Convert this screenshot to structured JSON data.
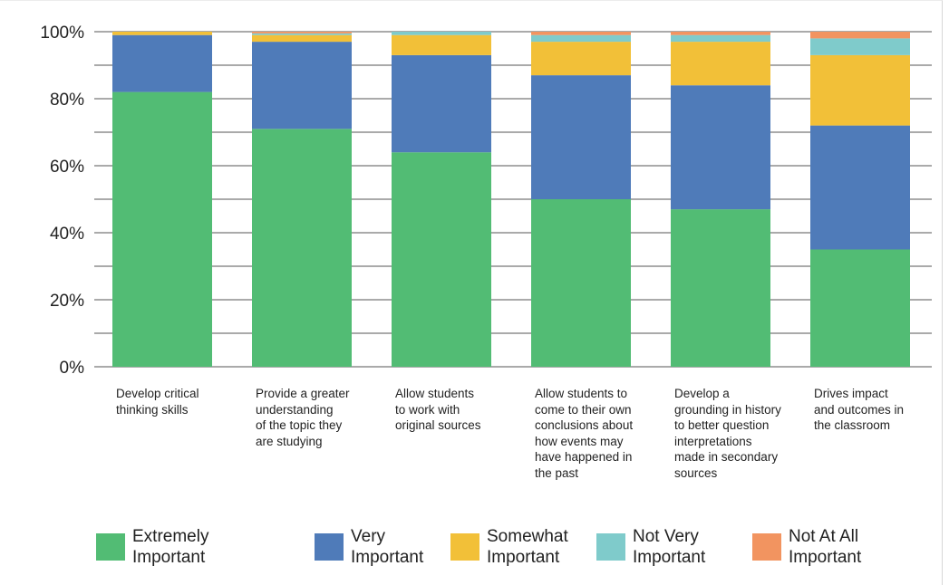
{
  "chart_data": {
    "type": "bar",
    "stacked": true,
    "categories": [
      "Develop critical thinking skills",
      "Provide a greater understanding of the topic they are studying",
      "Allow students to work with original sources",
      "Allow students to come to their own conclusions about how events may have happened in the past",
      "Develop a grounding in history to better question interpretations made in secondary sources",
      "Drives impact and outcomes in the classroom"
    ],
    "series": [
      {
        "name": "Extremely Important",
        "color": "#52bc74",
        "values": [
          82,
          71,
          64,
          50,
          47,
          35
        ]
      },
      {
        "name": "Very Important",
        "color": "#4f7bb9",
        "values": [
          17,
          26,
          29,
          37,
          37,
          37
        ]
      },
      {
        "name": "Somewhat Important",
        "color": "#f2c038",
        "values": [
          1,
          2,
          6,
          10,
          13,
          21
        ]
      },
      {
        "name": "Not Very Important",
        "color": "#7fcbcb",
        "values": [
          0,
          0.5,
          1,
          2,
          2,
          5
        ]
      },
      {
        "name": "Not At All Important",
        "color": "#f29460",
        "values": [
          0,
          0.5,
          0,
          1,
          1,
          2
        ]
      }
    ],
    "yticks": [
      "0%",
      "20%",
      "40%",
      "60%",
      "80%",
      "100%"
    ],
    "ylim": [
      0,
      100
    ],
    "grid": true,
    "legend": "bottom"
  },
  "legend_labels": [
    [
      "Extremely",
      "Important"
    ],
    [
      "Very",
      "Important"
    ],
    [
      "Somewhat",
      "Important"
    ],
    [
      "Not Very",
      "Important"
    ],
    [
      "Not At All",
      "Important"
    ]
  ],
  "category_label_lines": [
    [
      "Develop critical",
      "thinking skills"
    ],
    [
      "Provide a greater",
      "understanding",
      "of the topic they",
      "are studying"
    ],
    [
      "Allow students",
      "to work with",
      "original sources"
    ],
    [
      "Allow students to",
      "come to their own",
      "conclusions about",
      "how events may",
      "have happened in",
      "the past"
    ],
    [
      "Develop a",
      "grounding in history",
      "to better question",
      "interpretations",
      "made in secondary",
      "sources"
    ],
    [
      "Drives impact",
      "and outcomes in",
      "the classroom"
    ]
  ]
}
